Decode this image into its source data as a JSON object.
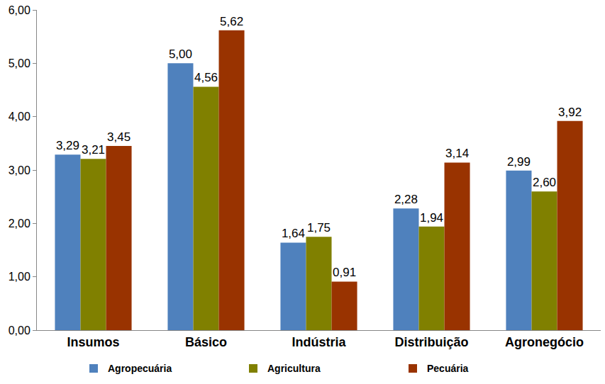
{
  "chart_data": {
    "type": "bar",
    "categories": [
      "Insumos",
      "Básico",
      "Indústria",
      "Distribuição",
      "Agronegócio"
    ],
    "series": [
      {
        "name": "Agropecuária",
        "color": "#4F81BD",
        "values": [
          3.29,
          5.0,
          1.64,
          2.28,
          2.99
        ],
        "value_labels": [
          "3,29",
          "5,00",
          "1,64",
          "2,28",
          "2,99"
        ]
      },
      {
        "name": "Agricultura",
        "color": "#808000",
        "values": [
          3.21,
          4.56,
          1.75,
          1.94,
          2.6
        ],
        "value_labels": [
          "3,21",
          "4,56",
          "1,75",
          "1,94",
          "2,60"
        ]
      },
      {
        "name": "Pecuária",
        "color": "#993300",
        "values": [
          3.45,
          5.62,
          0.91,
          3.14,
          3.92
        ],
        "value_labels": [
          "3,45",
          "5,62",
          "0,91",
          "3,14",
          "3,92"
        ]
      }
    ],
    "ylim": [
      0,
      6
    ],
    "yticks": [
      {
        "value": 0,
        "label": "0,00"
      },
      {
        "value": 1,
        "label": "1,00"
      },
      {
        "value": 2,
        "label": "2,00"
      },
      {
        "value": 3,
        "label": "3,00"
      },
      {
        "value": 4,
        "label": "4,00"
      },
      {
        "value": 5,
        "label": "5,00"
      },
      {
        "value": 6,
        "label": "6,00"
      }
    ],
    "grid": false,
    "data_labels": true,
    "legend": "bottom"
  }
}
